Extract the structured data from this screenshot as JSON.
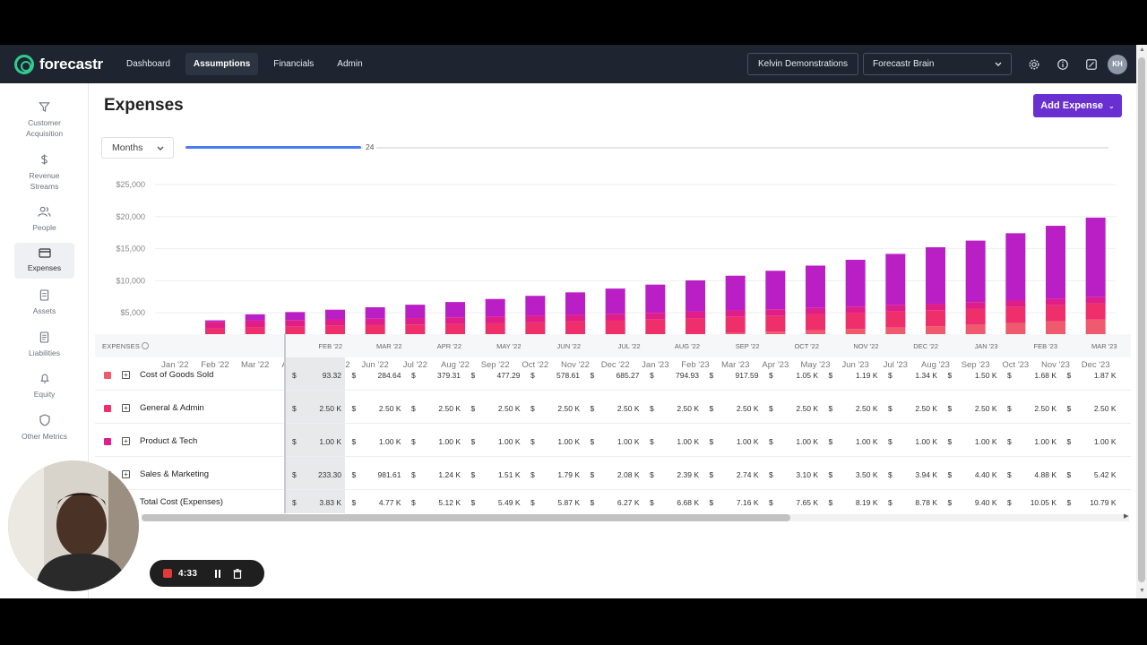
{
  "topnav": {
    "logo_text": "forecastr",
    "links": [
      {
        "label": "Dashboard",
        "active": false
      },
      {
        "label": "Assumptions",
        "active": true
      },
      {
        "label": "Financials",
        "active": false
      },
      {
        "label": "Admin",
        "active": false
      }
    ],
    "org_button": "Kelvin Demonstrations",
    "brain_select": "Forecastr Brain",
    "avatar_initials": "KH"
  },
  "sidebar": {
    "items": [
      {
        "label": "Customer Acquisition",
        "icon": "filter-icon",
        "active": false
      },
      {
        "label": "Revenue Streams",
        "icon": "dollar-icon",
        "active": false
      },
      {
        "label": "People",
        "icon": "people-icon",
        "active": false
      },
      {
        "label": "Expenses",
        "icon": "credit-card-icon",
        "active": true
      },
      {
        "label": "Assets",
        "icon": "document-icon",
        "active": false
      },
      {
        "label": "Liabilities",
        "icon": "document-lines-icon",
        "active": false
      },
      {
        "label": "Equity",
        "icon": "bell-icon",
        "active": false
      },
      {
        "label": "Other Metrics",
        "icon": "shield-icon",
        "active": false
      }
    ]
  },
  "page": {
    "title": "Expenses",
    "add_button": "Add Expense",
    "period_select": "Months",
    "slider_value": "24",
    "slider_fraction": 0.19
  },
  "chart_data": {
    "type": "bar",
    "stacked": true,
    "categories": [
      "Jan '22",
      "Feb '22",
      "Mar '22",
      "Apr '22",
      "May '22",
      "Jun '22",
      "Jul '22",
      "Aug '22",
      "Sep '22",
      "Oct '22",
      "Nov '22",
      "Dec '22",
      "Jan '23",
      "Feb '23",
      "Mar '23",
      "Apr '23",
      "May '23",
      "Jun '23",
      "Jul '23",
      "Aug '23",
      "Sep '23",
      "Oct '23",
      "Nov '23",
      "Dec '23"
    ],
    "y_ticks": [
      "$25,000",
      "$20,000",
      "$15,000",
      "$10,000",
      "$5,000",
      "$0"
    ],
    "ylim": [
      0,
      25000
    ],
    "grid": true,
    "series": [
      {
        "color": "#f05a6e",
        "values": [
          0,
          93,
          285,
          379,
          477,
          579,
          685,
          795,
          918,
          1050,
          1190,
          1340,
          1500,
          1680,
          1870,
          2060,
          2260,
          2470,
          2690,
          2920,
          3160,
          3410,
          3670,
          3940
        ]
      },
      {
        "color": "#ef2f6b",
        "values": [
          0,
          2500,
          2500,
          2500,
          2500,
          2500,
          2500,
          2500,
          2500,
          2500,
          2500,
          2500,
          2500,
          2500,
          2500,
          2500,
          2500,
          2500,
          2500,
          2500,
          2500,
          2500,
          2500,
          2500
        ]
      },
      {
        "color": "#e01e8a",
        "values": [
          0,
          1000,
          1000,
          1000,
          1000,
          1000,
          1000,
          1000,
          1000,
          1000,
          1000,
          1000,
          1000,
          1000,
          1000,
          1000,
          1000,
          1000,
          1000,
          1000,
          1000,
          1000,
          1000,
          1000
        ]
      },
      {
        "color": "#b91fc4",
        "values": [
          0,
          233,
          982,
          1240,
          1510,
          1790,
          2080,
          2390,
          2740,
          3100,
          3500,
          3940,
          4400,
          4880,
          5420,
          6000,
          6600,
          7300,
          8000,
          8800,
          9600,
          10500,
          11400,
          12400
        ]
      }
    ]
  },
  "table": {
    "header_label": "EXPENSES",
    "months": [
      "FEB '22",
      "MAR '22",
      "APR '22",
      "MAY '22",
      "JUN '22",
      "JUL '22",
      "AUG '22",
      "SEP '22",
      "OCT '22",
      "NOV '22",
      "DEC '22",
      "JAN '23",
      "FEB '23",
      "MAR '23"
    ],
    "currency_symbol": "$",
    "rows": [
      {
        "name": "Cost of Goods Sold",
        "color": "#f05a6e",
        "values": [
          "93.32",
          "284.64",
          "379.31",
          "477.29",
          "578.61",
          "685.27",
          "794.93",
          "917.59",
          "1.05 K",
          "1.19 K",
          "1.34 K",
          "1.50 K",
          "1.68 K",
          "1.87 K"
        ]
      },
      {
        "name": "General & Admin",
        "color": "#ef2f6b",
        "values": [
          "2.50 K",
          "2.50 K",
          "2.50 K",
          "2.50 K",
          "2.50 K",
          "2.50 K",
          "2.50 K",
          "2.50 K",
          "2.50 K",
          "2.50 K",
          "2.50 K",
          "2.50 K",
          "2.50 K",
          "2.50 K"
        ]
      },
      {
        "name": "Product & Tech",
        "color": "#e01e8a",
        "values": [
          "1.00 K",
          "1.00 K",
          "1.00 K",
          "1.00 K",
          "1.00 K",
          "1.00 K",
          "1.00 K",
          "1.00 K",
          "1.00 K",
          "1.00 K",
          "1.00 K",
          "1.00 K",
          "1.00 K",
          "1.00 K"
        ]
      },
      {
        "name": "Sales & Marketing",
        "color": "#b91fc4",
        "values": [
          "233.30",
          "981.61",
          "1.24 K",
          "1.51 K",
          "1.79 K",
          "2.08 K",
          "2.39 K",
          "2.74 K",
          "3.10 K",
          "3.50 K",
          "3.94 K",
          "4.40 K",
          "4.88 K",
          "5.42 K"
        ]
      }
    ],
    "total": {
      "name": "Total Cost (Expenses)",
      "values": [
        "3.83 K",
        "4.77 K",
        "5.12 K",
        "5.49 K",
        "5.87 K",
        "6.27 K",
        "6.68 K",
        "7.16 K",
        "7.65 K",
        "8.19 K",
        "8.78 K",
        "9.40 K",
        "10.05 K",
        "10.79 K"
      ]
    }
  },
  "recorder": {
    "time": "4:33"
  }
}
